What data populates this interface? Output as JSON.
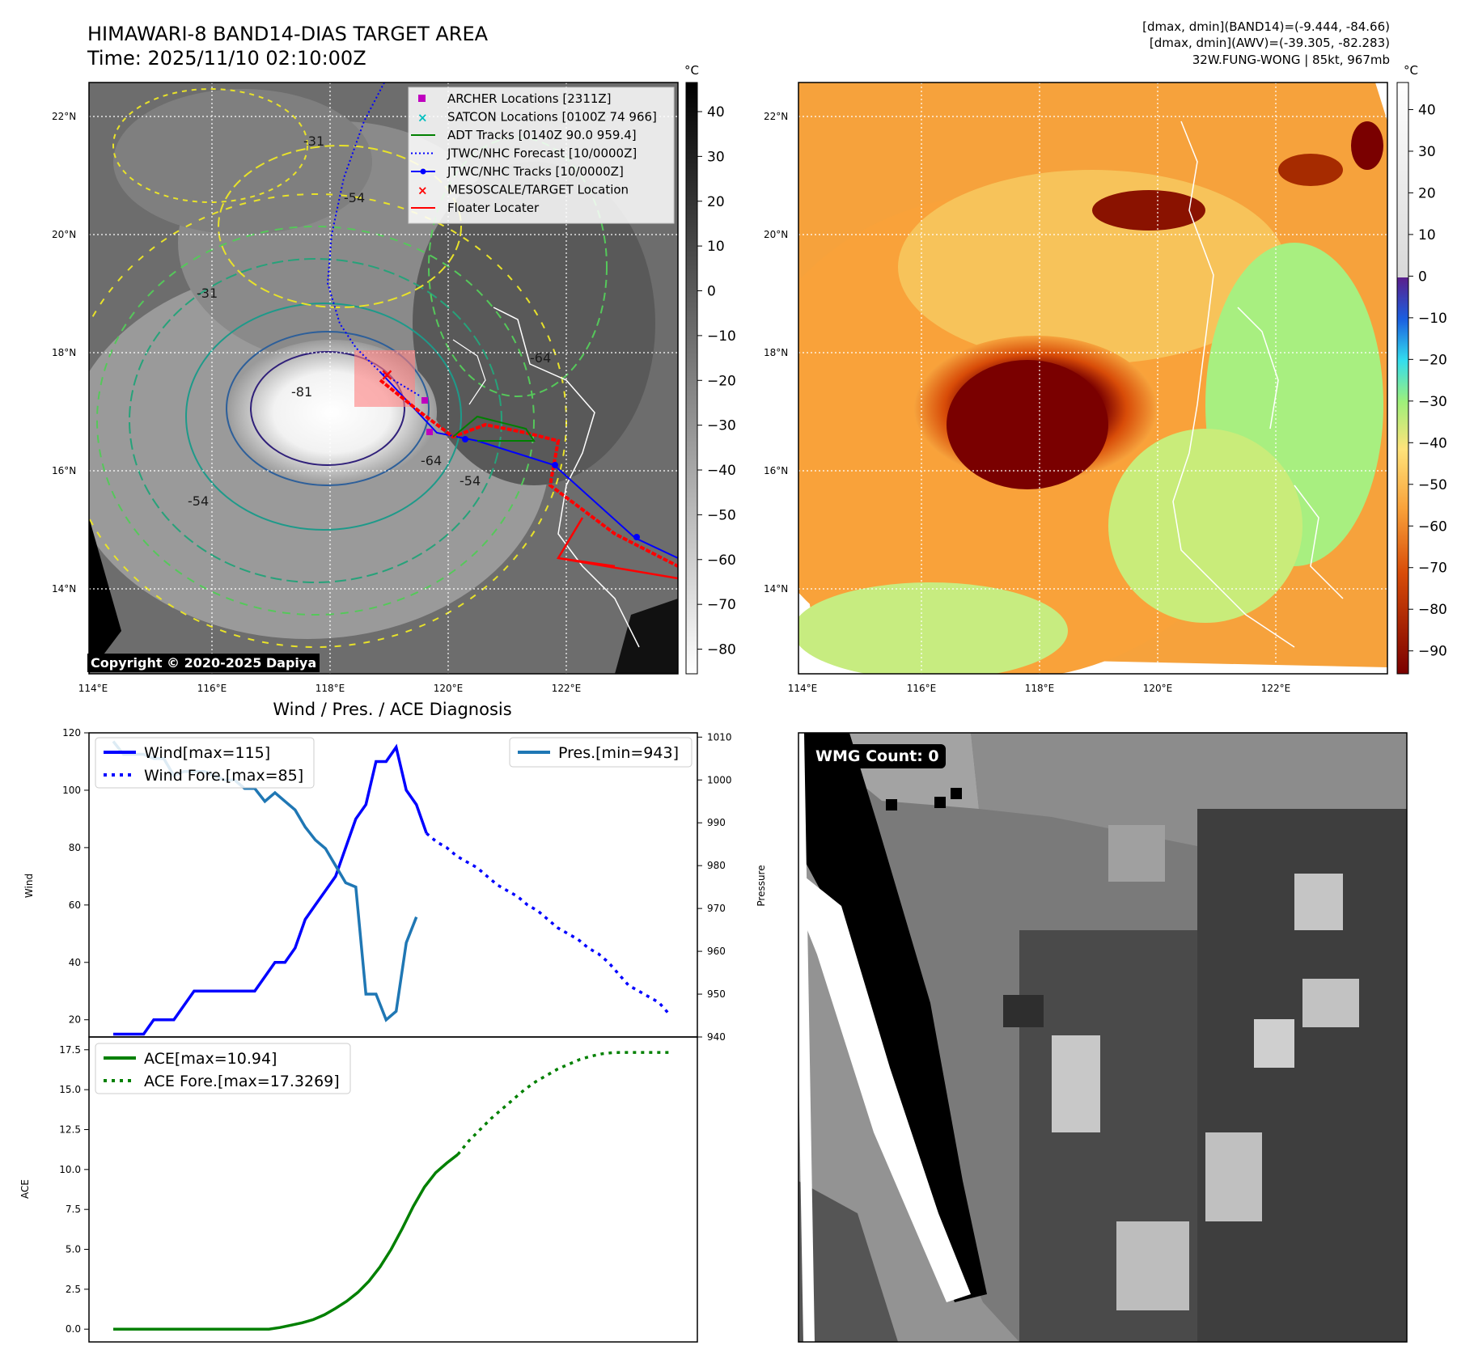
{
  "sat_panel": {
    "title": "HIMAWARI-8 BAND14-DIAS TARGET AREA",
    "time": "Time: 2025/11/10 02:10:00Z",
    "colorbar_unit": "°C",
    "colorbar_ticks": [
      "40",
      "30",
      "20",
      "10",
      "0",
      "−10",
      "−20",
      "−30",
      "−40",
      "−50",
      "−60",
      "−70",
      "−80"
    ],
    "lat_labels": [
      "22°N",
      "20°N",
      "18°N",
      "16°N",
      "14°N"
    ],
    "lon_labels": [
      "114°E",
      "116°E",
      "118°E",
      "120°E",
      "122°E"
    ],
    "copyright": "Copyright © 2020-2025 Dapiya",
    "legend": [
      {
        "label": "ARCHER Locations [2311Z]",
        "color": "#bf00bf",
        "marker": "square"
      },
      {
        "label": "SATCON Locations [0100Z 74 966]",
        "color": "#00bfbf",
        "marker": "x"
      },
      {
        "label": "ADT Tracks [0140Z 90.0 959.4]",
        "color": "#008000",
        "marker": "line"
      },
      {
        "label": "JTWC/NHC Forecast [10/0000Z]",
        "color": "#0000ff",
        "marker": "dotted"
      },
      {
        "label": "JTWC/NHC Tracks [10/0000Z]",
        "color": "#0000ff",
        "marker": "line-dot"
      },
      {
        "label": "MESOSCALE/TARGET Location",
        "color": "#ff0000",
        "marker": "x"
      },
      {
        "label": "Floater Locater",
        "color": "#ff0000",
        "marker": "line"
      }
    ],
    "contour_labels": [
      "-81",
      "-54",
      "-64",
      "-31",
      "-54",
      "-31",
      "-54",
      "-64"
    ]
  },
  "ir_panel": {
    "stats_line1": "[dmax, dmin](BAND14)=(-9.444, -84.66)",
    "stats_line2": "[dmax, dmin](AWV)=(-39.305, -82.283)",
    "stats_line3": "32W.FUNG-WONG | 85kt, 967mb",
    "colorbar_unit": "°C",
    "colorbar_ticks": [
      "40",
      "30",
      "20",
      "10",
      "0",
      "−10",
      "−20",
      "−30",
      "−40",
      "−50",
      "−60",
      "−70",
      "−80",
      "−90"
    ],
    "lat_labels": [
      "22°N",
      "20°N",
      "18°N",
      "16°N",
      "14°N"
    ],
    "lon_labels": [
      "114°E",
      "116°E",
      "118°E",
      "120°E",
      "122°E"
    ]
  },
  "wmg_panel": {
    "label": "WMG Count: 0"
  },
  "chart_data": [
    {
      "type": "line",
      "title": "Wind / Pres. / ACE Diagnosis",
      "ylabel": "Wind",
      "y2label": "Pressure",
      "ylim": [
        14,
        120
      ],
      "y2lim": [
        940,
        1011
      ],
      "yticks": [
        "20",
        "40",
        "60",
        "80",
        "100",
        "120"
      ],
      "y2ticks": [
        "940",
        "950",
        "960",
        "970",
        "980",
        "990",
        "1000",
        "1010"
      ],
      "series": [
        {
          "name": "Wind[max=115]",
          "color": "#0000ff",
          "style": "solid",
          "values": [
            15,
            15,
            15,
            15,
            20,
            20,
            20,
            25,
            30,
            30,
            30,
            30,
            30,
            30,
            30,
            35,
            40,
            40,
            45,
            55,
            60,
            65,
            70,
            80,
            90,
            95,
            110,
            110,
            115,
            100,
            95,
            85
          ]
        },
        {
          "name": "Wind Fore.[max=85]",
          "color": "#0000ff",
          "style": "dotted",
          "start_index": 31,
          "values": [
            85,
            82,
            80,
            77,
            75,
            73,
            70,
            67,
            65,
            63,
            60,
            58,
            55,
            52,
            50,
            48,
            45,
            43,
            40,
            36,
            32,
            30,
            28,
            26,
            22
          ]
        },
        {
          "name": "Pres.[min=943]",
          "color": "#1f77b4",
          "style": "solid",
          "axis": "right",
          "values": [
            1009,
            1006,
            1006,
            1006,
            1005,
            1005,
            1001,
            1002,
            1002,
            1002,
            1001,
            1000,
            1000,
            998,
            998,
            995,
            997,
            995,
            993,
            989,
            986,
            984,
            980,
            976,
            975,
            950,
            950,
            944,
            946,
            962,
            968
          ]
        }
      ]
    },
    {
      "type": "line",
      "ylabel": "ACE",
      "ylim": [
        -0.8,
        18.3
      ],
      "yticks": [
        "0.0",
        "2.5",
        "5.0",
        "7.5",
        "10.0",
        "12.5",
        "15.0",
        "17.5"
      ],
      "series": [
        {
          "name": "ACE[max=10.94]",
          "color": "#008000",
          "style": "solid",
          "values": [
            0,
            0,
            0,
            0,
            0,
            0,
            0,
            0,
            0,
            0,
            0,
            0,
            0,
            0,
            0,
            0.1,
            0.25,
            0.4,
            0.6,
            0.9,
            1.3,
            1.75,
            2.3,
            3.0,
            3.9,
            5.0,
            6.3,
            7.7,
            8.9,
            9.8,
            10.4,
            10.94
          ]
        },
        {
          "name": "ACE Fore.[max=17.3269]",
          "color": "#008000",
          "style": "dotted",
          "start_index": 31,
          "values": [
            10.94,
            11.8,
            12.5,
            13.2,
            13.8,
            14.4,
            15.0,
            15.5,
            15.9,
            16.3,
            16.6,
            16.9,
            17.1,
            17.25,
            17.32,
            17.33,
            17.33,
            17.33,
            17.33,
            17.33
          ]
        }
      ]
    }
  ]
}
